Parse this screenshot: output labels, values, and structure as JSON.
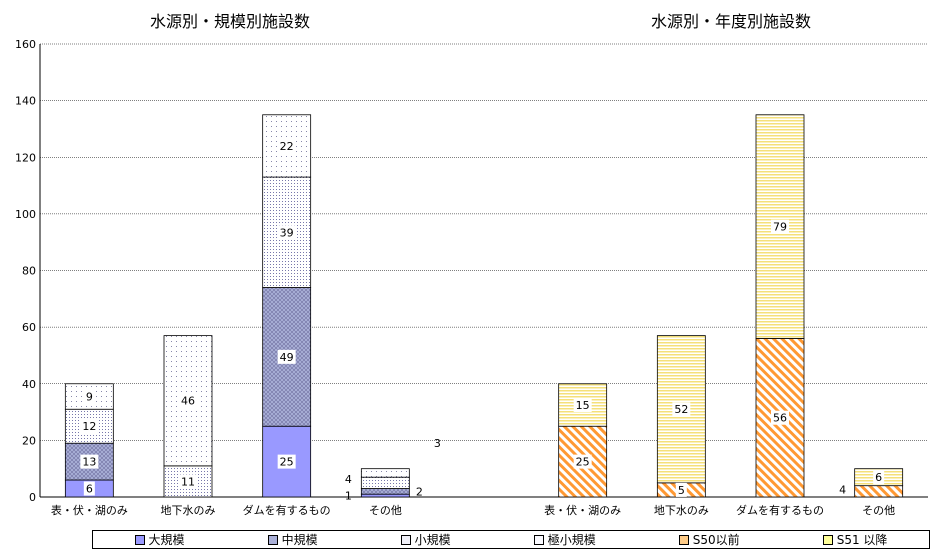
{
  "chart_data": {
    "type": "bar",
    "ylim": [
      0,
      160
    ],
    "yticks": [
      "0",
      "20",
      "40",
      "60",
      "80",
      "100",
      "120",
      "140",
      "160"
    ],
    "grid": true,
    "legend_placement": "bottom",
    "legend": [
      {
        "label": "大規模",
        "color": "#9999ff",
        "pattern": "solid"
      },
      {
        "label": "中規模",
        "color": "#9999cc",
        "pattern": "crosshatch"
      },
      {
        "label": "小規模",
        "color": "#ccccdd",
        "pattern": "dots"
      },
      {
        "label": "極小規模",
        "color": "#eeeeff",
        "pattern": "fine-dots"
      },
      {
        "label": "S50以前",
        "color": "#ff9933",
        "pattern": "diagonal"
      },
      {
        "label": "S51 以降",
        "color": "#ffff99",
        "pattern": "horizontal"
      }
    ],
    "charts": [
      {
        "title": "水源別・規模別施設数",
        "categories": [
          "表・伏・湖のみ",
          "地下水のみ",
          "ダムを有するもの",
          "その他"
        ],
        "series": [
          {
            "name": "大規模",
            "values": [
              6,
              0,
              25,
              1
            ]
          },
          {
            "name": "中規模",
            "values": [
              13,
              0,
              49,
              2
            ]
          },
          {
            "name": "小規模",
            "values": [
              12,
              11,
              39,
              4
            ]
          },
          {
            "name": "極小規模",
            "values": [
              9,
              46,
              22,
              3
            ]
          }
        ],
        "data_labels": [
          [
            "6",
            "13",
            "12",
            "9"
          ],
          [
            "",
            "",
            "11",
            "46"
          ],
          [
            "25",
            "49",
            "39",
            "22"
          ],
          [
            "1",
            "2",
            "4",
            "3"
          ]
        ]
      },
      {
        "title": "水源別・年度別施設数",
        "categories": [
          "表・伏・湖のみ",
          "地下水のみ",
          "ダムを有するもの",
          "その他"
        ],
        "series": [
          {
            "name": "S50以前",
            "values": [
              25,
              5,
              56,
              4
            ]
          },
          {
            "name": "S51 以降",
            "values": [
              15,
              52,
              79,
              6
            ]
          }
        ],
        "data_labels": [
          [
            "25",
            "15"
          ],
          [
            "5",
            "52"
          ],
          [
            "56",
            "79"
          ],
          [
            "4",
            "6"
          ]
        ]
      }
    ]
  }
}
